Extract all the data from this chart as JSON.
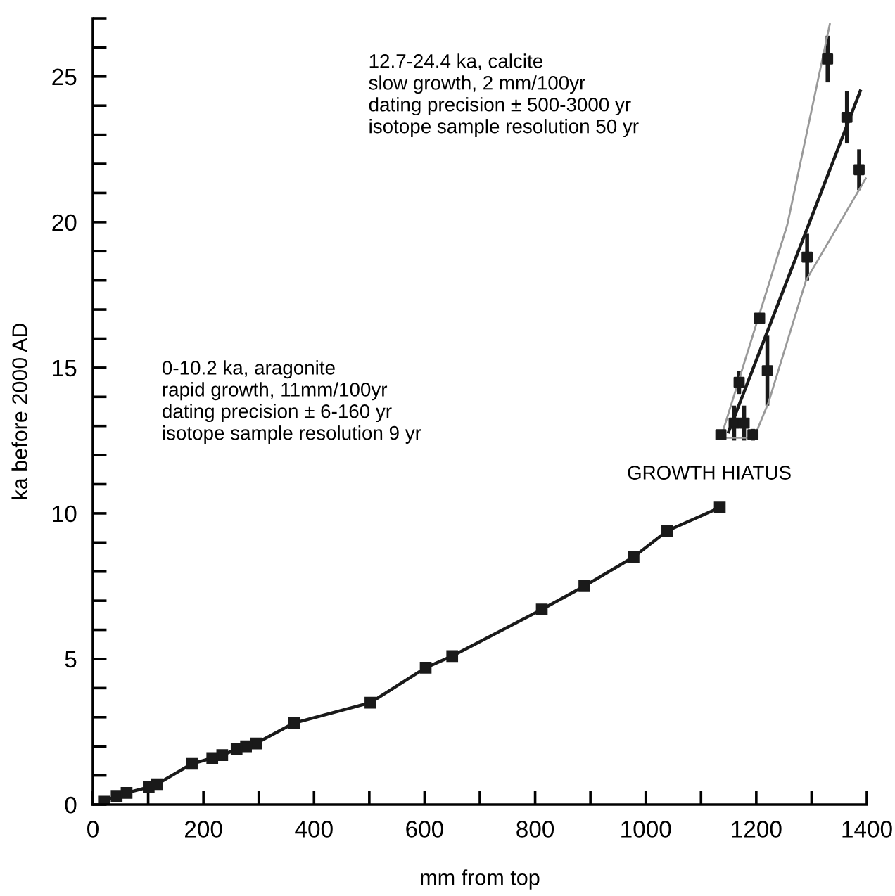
{
  "chart_data": {
    "type": "line",
    "xlabel": "mm from top",
    "ylabel": "ka before 2000 AD",
    "xlim": [
      0,
      1400
    ],
    "ylim": [
      0,
      27
    ],
    "xticks": [
      0,
      {
        "value": 100,
        "label": null
      },
      200,
      {
        "value": 300,
        "label": null
      },
      400,
      {
        "value": 500,
        "label": null
      },
      600,
      {
        "value": 700,
        "label": null
      },
      800,
      {
        "value": 900,
        "label": null
      },
      1000,
      {
        "value": 1100,
        "label": null
      },
      1200,
      {
        "value": 1300,
        "label": null
      },
      1400
    ],
    "yticks": [
      0,
      {
        "value": 1,
        "label": null
      },
      {
        "value": 2,
        "label": null
      },
      {
        "value": 3,
        "label": null
      },
      {
        "value": 4,
        "label": null
      },
      5,
      {
        "value": 6,
        "label": null
      },
      {
        "value": 7,
        "label": null
      },
      {
        "value": 8,
        "label": null
      },
      {
        "value": 9,
        "label": null
      },
      10,
      {
        "value": 11,
        "label": null
      },
      {
        "value": 12,
        "label": null
      },
      {
        "value": 13,
        "label": null
      },
      {
        "value": 14,
        "label": null
      },
      15,
      {
        "value": 16,
        "label": null
      },
      {
        "value": 17,
        "label": null
      },
      {
        "value": 18,
        "label": null
      },
      {
        "value": 19,
        "label": null
      },
      20,
      {
        "value": 21,
        "label": null
      },
      {
        "value": 22,
        "label": null
      },
      {
        "value": 23,
        "label": null
      },
      {
        "value": 24,
        "label": null
      },
      25,
      {
        "value": 26,
        "label": null
      },
      {
        "value": 27,
        "label": null
      }
    ],
    "grid": false,
    "legend": false,
    "series": [
      {
        "color": "#1a1a1a",
        "marker": "square",
        "x": [
          20,
          43,
          61,
          101,
          116,
          179,
          216,
          234,
          260,
          277,
          295,
          364,
          502,
          602,
          650,
          812,
          889,
          978,
          1039,
          1134
        ],
        "values": [
          0.1,
          0.3,
          0.4,
          0.6,
          0.7,
          1.4,
          1.6,
          1.7,
          1.9,
          2.0,
          2.1,
          2.8,
          3.5,
          4.7,
          5.1,
          6.7,
          7.5,
          8.5,
          9.4,
          10.2
        ]
      },
      {
        "type": "scatter",
        "color": "#1a1a1a",
        "marker": "square",
        "x": [
          1136,
          1160,
          1169,
          1178,
          1194,
          1206,
          1220,
          1292,
          1329,
          1364,
          1386
        ],
        "values": [
          12.7,
          13.1,
          14.5,
          13.1,
          12.7,
          16.7,
          14.9,
          18.8,
          25.6,
          23.6,
          21.8
        ],
        "errors": [
          null,
          0.6,
          0.4,
          0.6,
          0.2,
          null,
          1.2,
          0.8,
          0.8,
          0.9,
          0.7
        ]
      },
      {
        "color": "#1a1a1a",
        "marker": "none",
        "x": [
          1150,
          1388
        ],
        "values": [
          12.8,
          24.5
        ]
      },
      {
        "color": "#999999",
        "marker": "none",
        "x": [
          1136,
          1256,
          1333
        ],
        "values": [
          12.6,
          19.9,
          26.8
        ]
      },
      {
        "color": "#999999",
        "marker": "none",
        "x": [
          1136,
          1196,
          1222,
          1290,
          1398
        ],
        "values": [
          12.6,
          12.6,
          13.8,
          18.0,
          21.5
        ]
      }
    ],
    "annotations": [
      "12.7-24.4 ka, calcite\nslow growth, 2 mm/100yr\ndating precision ± 500-3000 yr\nisotope sample resolution 50 yr",
      "0-10.2 ka, aragonite\nrapid growth, 11mm/100yr\ndating precision ± 6-160 yr\nisotope sample resolution 9 yr",
      "GROWTH HIATUS"
    ]
  }
}
